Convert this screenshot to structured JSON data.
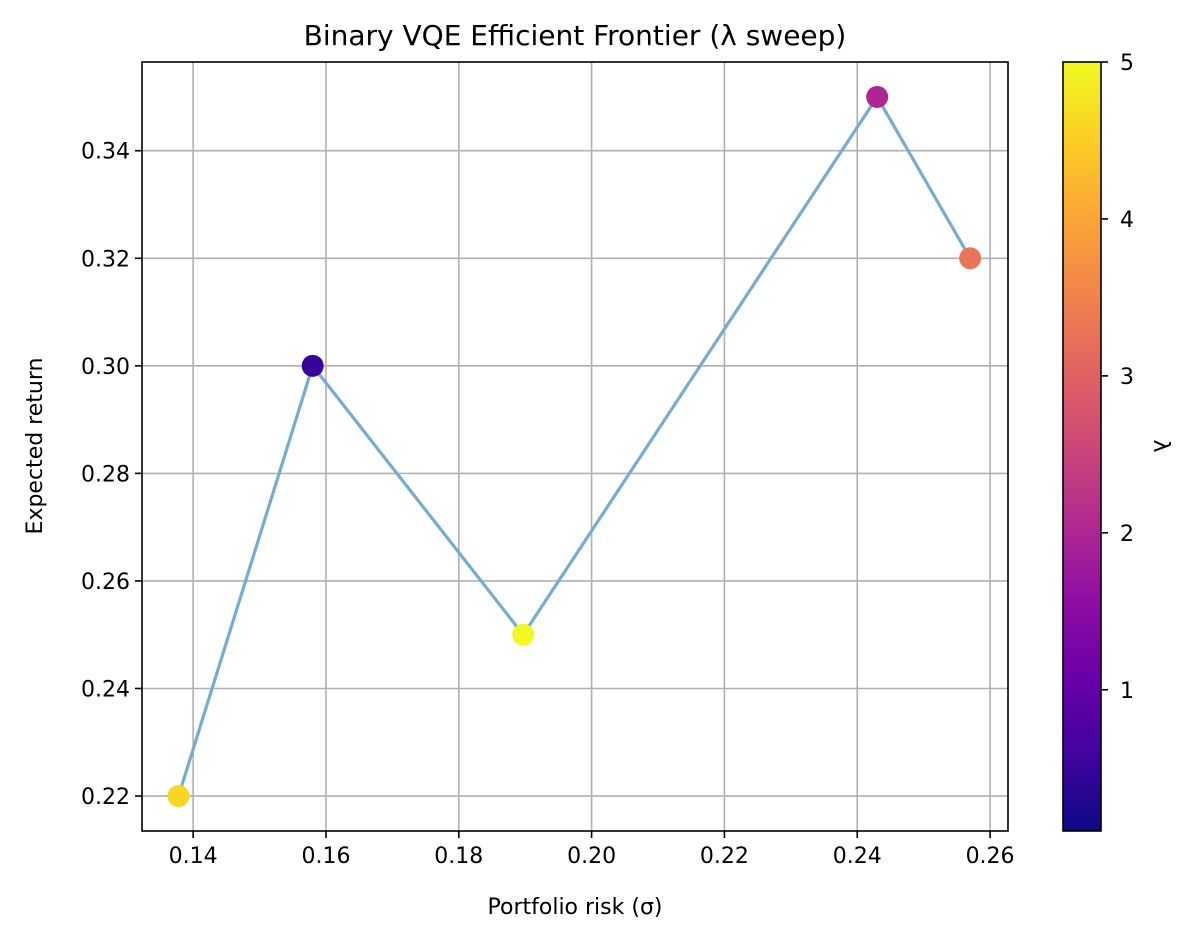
{
  "chart_data": {
    "type": "scatter",
    "title": "Binary VQE Efficient Frontier (λ sweep)",
    "xlabel": "Portfolio risk (σ)",
    "ylabel": "Expected return",
    "xlim": [
      0.1323,
      0.2627
    ],
    "ylim": [
      0.2135,
      0.3565
    ],
    "xticks": [
      0.14,
      0.16,
      0.18,
      0.2,
      0.22,
      0.24,
      0.26
    ],
    "xtick_labels": [
      "0.14",
      "0.16",
      "0.18",
      "0.20",
      "0.22",
      "0.24",
      "0.26"
    ],
    "yticks": [
      0.22,
      0.24,
      0.26,
      0.28,
      0.3,
      0.32,
      0.34
    ],
    "ytick_labels": [
      "0.22",
      "0.24",
      "0.26",
      "0.28",
      "0.30",
      "0.32",
      "0.34"
    ],
    "grid": true,
    "line_color": "#76acd0",
    "points": [
      {
        "x": 0.1378,
        "y": 0.22,
        "lambda": 4.6
      },
      {
        "x": 0.158,
        "y": 0.3,
        "lambda": 0.5
      },
      {
        "x": 0.1897,
        "y": 0.25,
        "lambda": 5.0
      },
      {
        "x": 0.243,
        "y": 0.35,
        "lambda": 2.0
      },
      {
        "x": 0.257,
        "y": 0.32,
        "lambda": 3.3
      }
    ],
    "colorbar": {
      "label": "λ",
      "colormap": "plasma",
      "range": [
        0.1,
        5.0
      ],
      "ticks": [
        1,
        2,
        3,
        4,
        5
      ],
      "tick_labels": [
        "1",
        "2",
        "3",
        "4",
        "5"
      ]
    }
  }
}
